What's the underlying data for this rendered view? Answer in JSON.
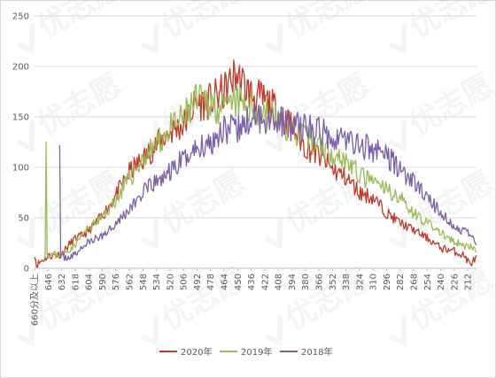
{
  "chart_data": {
    "type": "line",
    "title": "",
    "xlabel": "",
    "ylabel": "",
    "ylim": [
      0,
      250
    ],
    "y_ticks": [
      0,
      50,
      100,
      150,
      200,
      250
    ],
    "grid": "horizontal",
    "legend_position": "bottom",
    "x_tick_labels": [
      "660分及以上",
      "646",
      "632",
      "618",
      "604",
      "590",
      "576",
      "562",
      "548",
      "534",
      "520",
      "506",
      "492",
      "478",
      "464",
      "450",
      "436",
      "422",
      "408",
      "394",
      "380",
      "366",
      "352",
      "338",
      "324",
      "310",
      "296",
      "282",
      "268",
      "254",
      "240",
      "226",
      "212"
    ],
    "x_top_score": 660,
    "x_bottom_score": 203,
    "series": [
      {
        "name": "2020年",
        "color": "#c0392b",
        "anchors": [
          [
            660,
            15
          ],
          [
            658,
            3
          ],
          [
            652,
            8
          ],
          [
            646,
            12
          ],
          [
            632,
            14
          ],
          [
            620,
            28
          ],
          [
            606,
            35
          ],
          [
            590,
            52
          ],
          [
            576,
            72
          ],
          [
            562,
            95
          ],
          [
            548,
            108
          ],
          [
            534,
            122
          ],
          [
            520,
            135
          ],
          [
            506,
            142
          ],
          [
            494,
            162
          ],
          [
            478,
            166
          ],
          [
            464,
            175
          ],
          [
            452,
            192
          ],
          [
            436,
            172
          ],
          [
            422,
            166
          ],
          [
            408,
            155
          ],
          [
            394,
            140
          ],
          [
            380,
            120
          ],
          [
            366,
            112
          ],
          [
            352,
            98
          ],
          [
            338,
            90
          ],
          [
            324,
            75
          ],
          [
            310,
            70
          ],
          [
            296,
            55
          ],
          [
            282,
            45
          ],
          [
            268,
            38
          ],
          [
            254,
            30
          ],
          [
            240,
            20
          ],
          [
            226,
            17
          ],
          [
            215,
            12
          ],
          [
            210,
            4
          ],
          [
            203,
            10
          ]
        ],
        "spike": null,
        "seed": 11
      },
      {
        "name": "2019年",
        "color": "#9bbb59",
        "anchors": [
          [
            650,
            14
          ],
          [
            632,
            13
          ],
          [
            620,
            22
          ],
          [
            606,
            38
          ],
          [
            590,
            50
          ],
          [
            576,
            68
          ],
          [
            562,
            88
          ],
          [
            548,
            108
          ],
          [
            534,
            122
          ],
          [
            520,
            138
          ],
          [
            506,
            148
          ],
          [
            494,
            165
          ],
          [
            478,
            165
          ],
          [
            464,
            155
          ],
          [
            452,
            165
          ],
          [
            436,
            158
          ],
          [
            422,
            155
          ],
          [
            408,
            148
          ],
          [
            394,
            138
          ],
          [
            380,
            128
          ],
          [
            366,
            125
          ],
          [
            352,
            115
          ],
          [
            338,
            108
          ],
          [
            324,
            92
          ],
          [
            310,
            85
          ],
          [
            296,
            78
          ],
          [
            282,
            70
          ],
          [
            268,
            55
          ],
          [
            254,
            45
          ],
          [
            240,
            35
          ],
          [
            226,
            25
          ],
          [
            212,
            22
          ],
          [
            203,
            17
          ]
        ],
        "spike": [
          648,
          125
        ],
        "seed": 23
      },
      {
        "name": "2018年",
        "color": "#7b5ea7",
        "anchors": [
          [
            634,
            10
          ],
          [
            620,
            12
          ],
          [
            606,
            25
          ],
          [
            590,
            32
          ],
          [
            576,
            45
          ],
          [
            562,
            58
          ],
          [
            548,
            75
          ],
          [
            534,
            85
          ],
          [
            520,
            95
          ],
          [
            506,
            108
          ],
          [
            494,
            118
          ],
          [
            478,
            125
          ],
          [
            464,
            140
          ],
          [
            452,
            135
          ],
          [
            436,
            148
          ],
          [
            422,
            150
          ],
          [
            408,
            148
          ],
          [
            394,
            140
          ],
          [
            380,
            140
          ],
          [
            366,
            135
          ],
          [
            352,
            132
          ],
          [
            338,
            128
          ],
          [
            324,
            122
          ],
          [
            310,
            118
          ],
          [
            296,
            112
          ],
          [
            282,
            98
          ],
          [
            268,
            85
          ],
          [
            254,
            70
          ],
          [
            240,
            55
          ],
          [
            226,
            40
          ],
          [
            212,
            35
          ],
          [
            203,
            25
          ]
        ],
        "spike": [
          634,
          122
        ],
        "seed": 37
      }
    ]
  },
  "watermark": {
    "text": "优志愿",
    "tiles": [
      {
        "col": 0,
        "row": 0
      },
      {
        "col": 1,
        "row": 0
      },
      {
        "col": 2,
        "row": 0
      },
      {
        "col": 3,
        "row": 0
      },
      {
        "col": 0,
        "row": 1
      },
      {
        "col": 1,
        "row": 1
      },
      {
        "col": 2,
        "row": 1
      },
      {
        "col": 3,
        "row": 1
      },
      {
        "col": 0,
        "row": 2
      },
      {
        "col": 1,
        "row": 2
      },
      {
        "col": 2,
        "row": 2
      },
      {
        "col": 3,
        "row": 2
      },
      {
        "col": 0,
        "row": 3
      },
      {
        "col": 1,
        "row": 3
      },
      {
        "col": 2,
        "row": 3
      },
      {
        "col": 3,
        "row": 3
      }
    ]
  }
}
